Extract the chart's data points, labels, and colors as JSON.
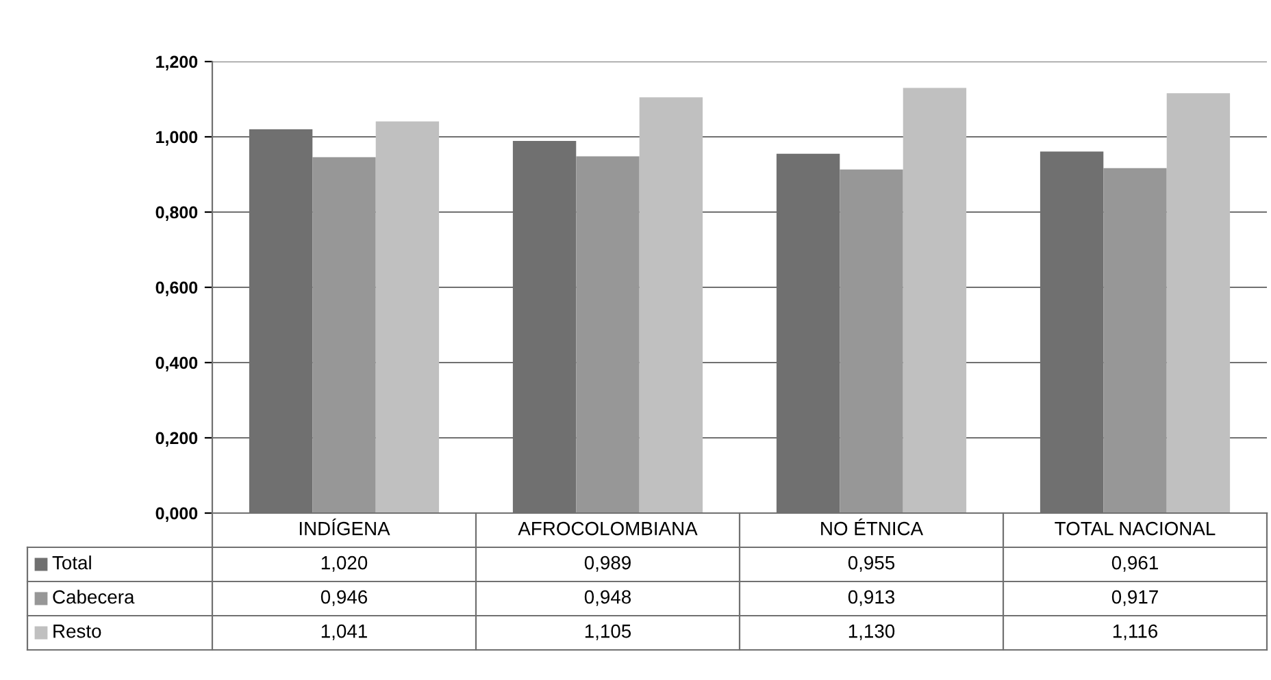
{
  "chart_data": {
    "type": "bar",
    "categories": [
      "INDÍGENA",
      "AFROCOLOMBIANA",
      "NO ÉTNICA",
      "TOTAL NACIONAL"
    ],
    "series": [
      {
        "name": "Total",
        "color": "#707070",
        "values": [
          1.02,
          0.989,
          0.955,
          0.961
        ],
        "value_labels": [
          "1,020",
          "0,989",
          "0,955",
          "0,961"
        ]
      },
      {
        "name": "Cabecera",
        "color": "#979797",
        "values": [
          0.946,
          0.948,
          0.913,
          0.917
        ],
        "value_labels": [
          "0,946",
          "0,948",
          "0,913",
          "0,917"
        ]
      },
      {
        "name": "Resto",
        "color": "#c0c0c0",
        "values": [
          1.041,
          1.105,
          1.13,
          1.116
        ],
        "value_labels": [
          "1,041",
          "1,105",
          "1,130",
          "1,116"
        ]
      }
    ],
    "ylim": [
      0,
      1.2
    ],
    "yticks": [
      {
        "value": 0,
        "label": "0,000"
      },
      {
        "value": 0.2,
        "label": "0,200"
      },
      {
        "value": 0.4,
        "label": "0,400"
      },
      {
        "value": 0.6,
        "label": "0,600"
      },
      {
        "value": 0.8,
        "label": "0,800"
      },
      {
        "value": 1.0,
        "label": "1,000"
      },
      {
        "value": 1.2,
        "label": "1,200"
      }
    ],
    "grid": "y",
    "legend": "bottom left"
  }
}
